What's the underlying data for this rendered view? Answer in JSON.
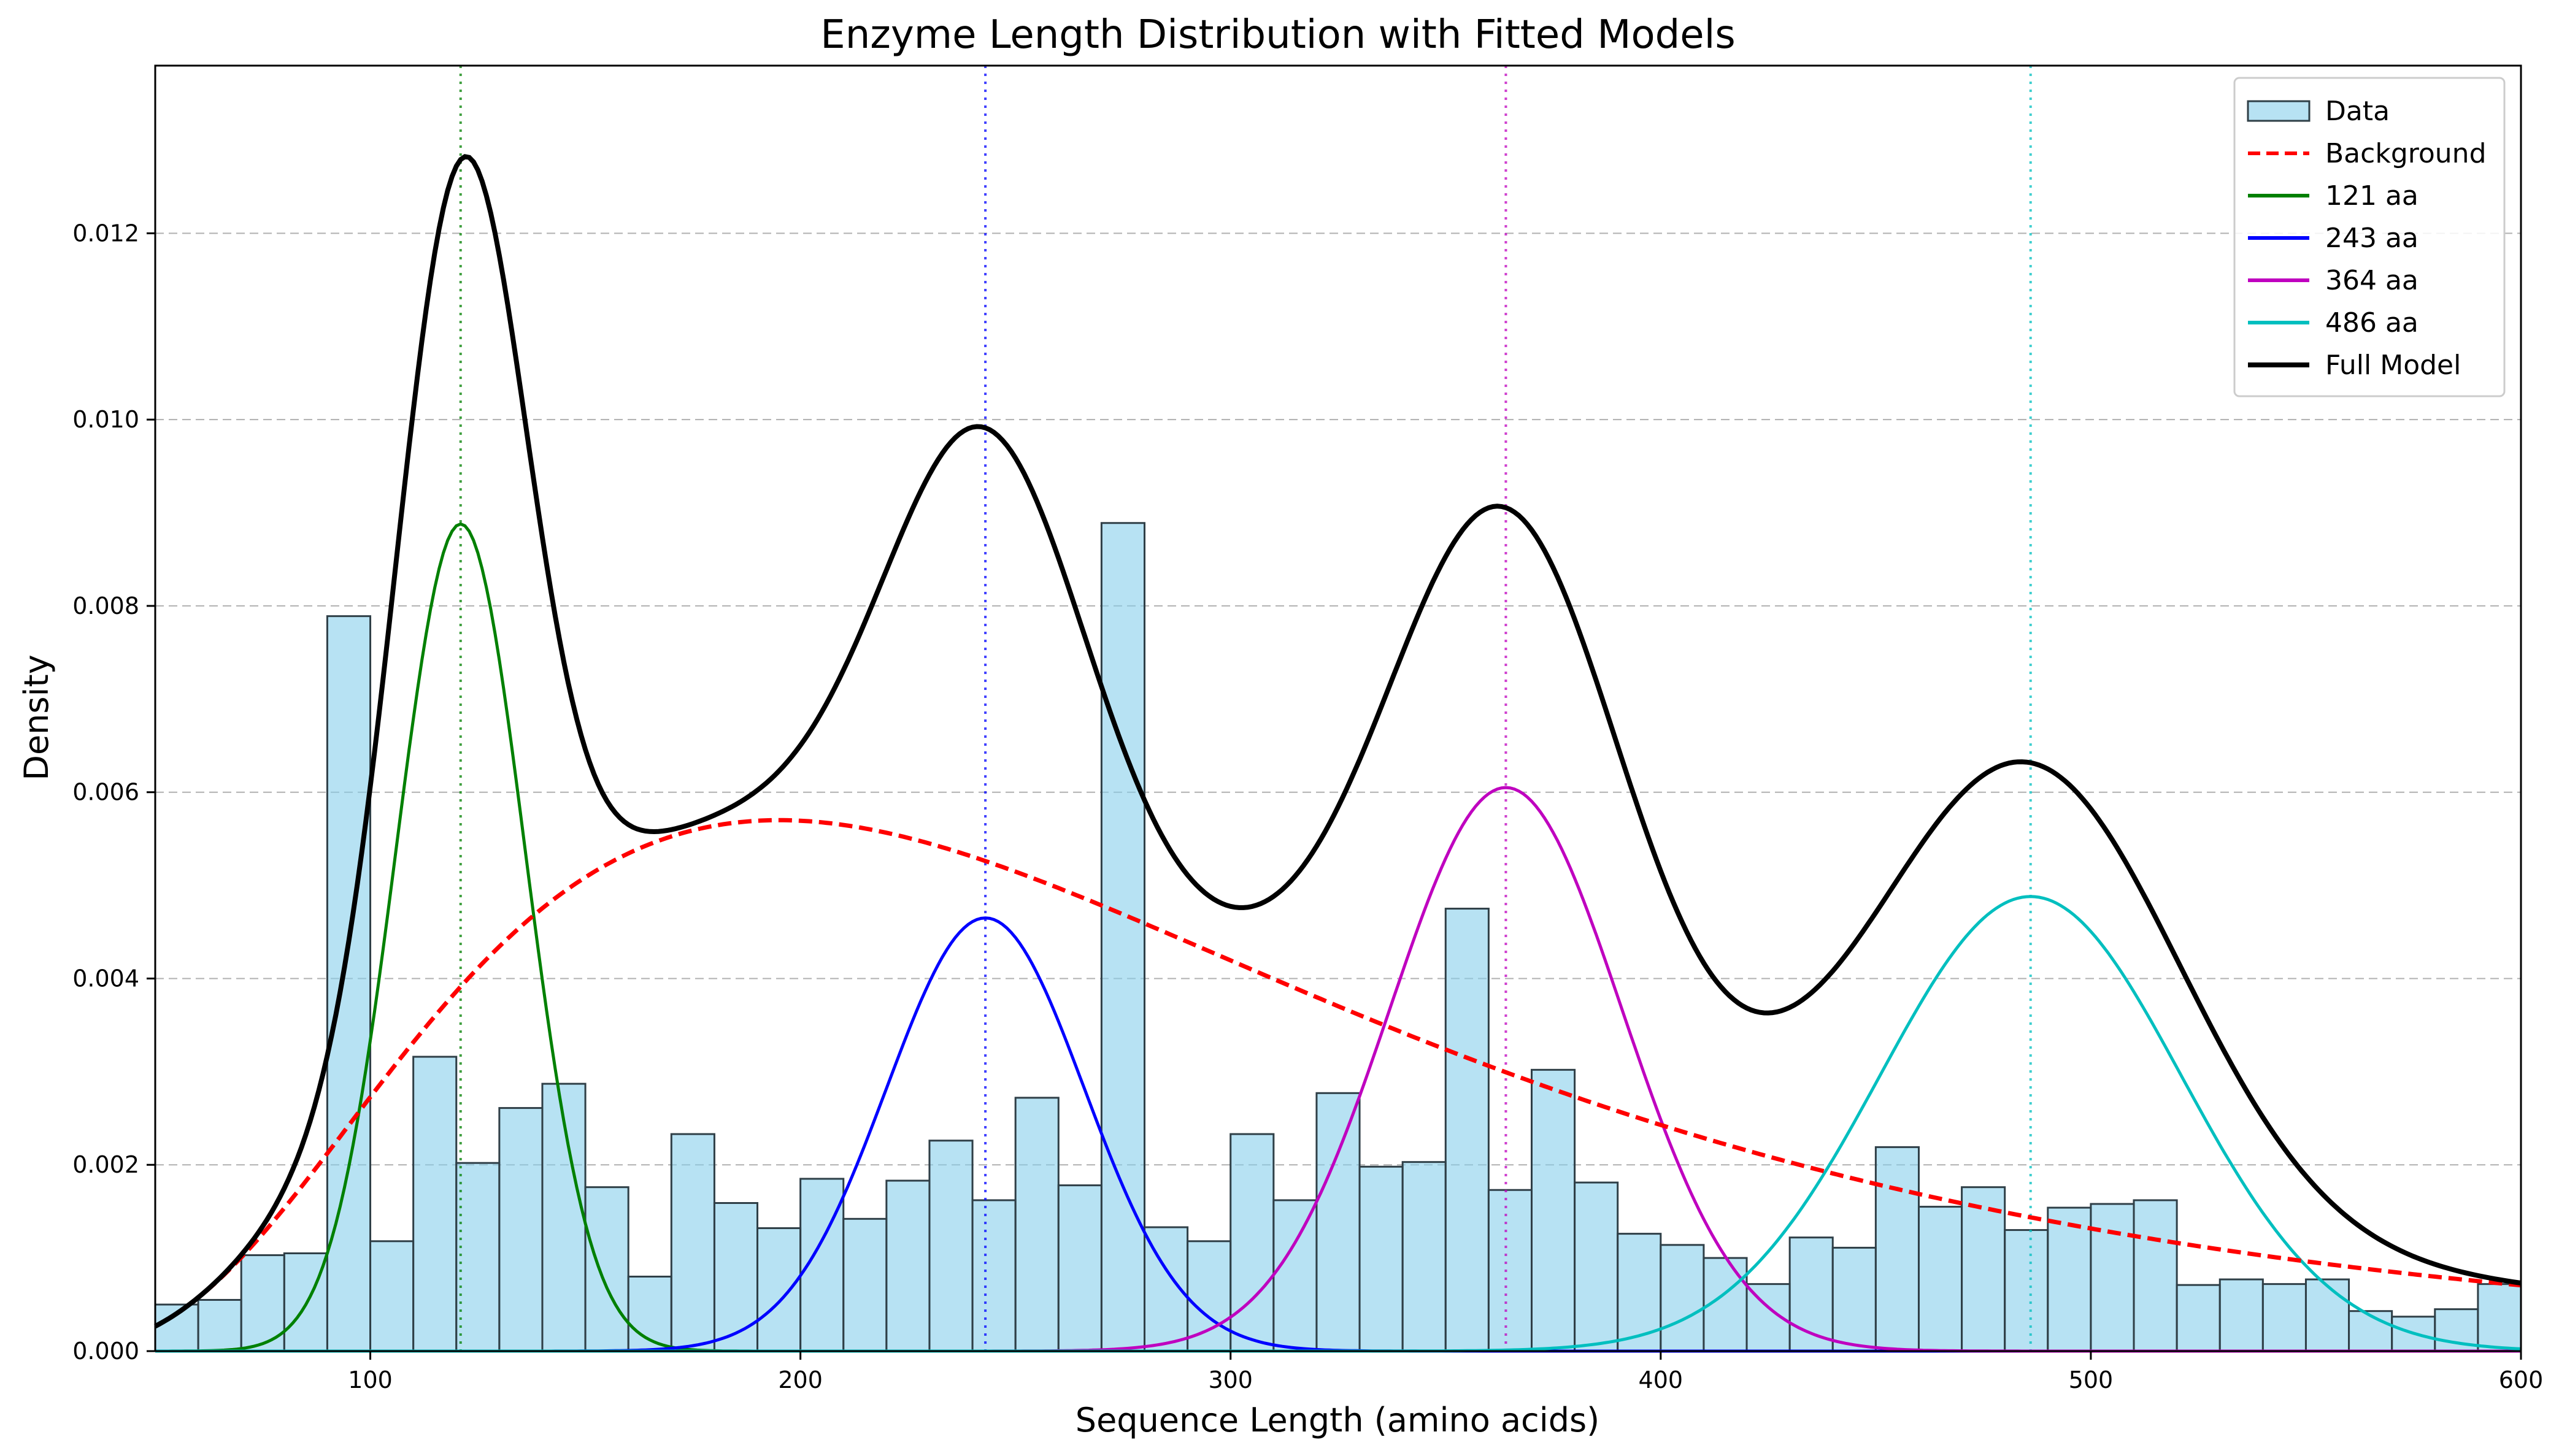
{
  "chart_data": {
    "type": "bar",
    "title": "Enzyme Length Distribution with Fitted Models",
    "xlabel": "Sequence Length (amino acids)",
    "ylabel": "Density",
    "xlim": [
      50,
      600
    ],
    "ylim": [
      0,
      0.0138
    ],
    "x_ticks": [
      100,
      200,
      300,
      400,
      500,
      600
    ],
    "x_tick_labels": [
      "100",
      "200",
      "300",
      "400",
      "500",
      "600"
    ],
    "y_ticks": [
      0,
      0.002,
      0.004,
      0.006,
      0.008,
      0.01,
      0.012
    ],
    "y_tick_labels": [
      "0.000",
      "0.002",
      "0.004",
      "0.006",
      "0.008",
      "0.010",
      "0.012"
    ],
    "grid": "horizontal dashed",
    "legend_position": "top-right",
    "histogram": {
      "name": "Data",
      "bin_start": 50,
      "bin_width": 10,
      "values": [
        0.0005,
        0.00055,
        0.00103,
        0.00105,
        0.00789,
        0.00118,
        0.00316,
        0.00202,
        0.00261,
        0.00287,
        0.00176,
        0.0008,
        0.00233,
        0.00159,
        0.00132,
        0.00185,
        0.00142,
        0.00183,
        0.00226,
        0.00162,
        0.00272,
        0.00178,
        0.00889,
        0.00133,
        0.00118,
        0.00233,
        0.00162,
        0.00277,
        0.00198,
        0.00203,
        0.00475,
        0.00173,
        0.00302,
        0.00181,
        0.00126,
        0.00114,
        0.001,
        0.00072,
        0.00122,
        0.00111,
        0.00219,
        0.00155,
        0.00176,
        0.0013,
        0.00154,
        0.00158,
        0.00162,
        0.00071,
        0.00077,
        0.00072,
        0.00077,
        0.00043,
        0.00037,
        0.00045,
        0.00072
      ],
      "fill": "#87ceeb",
      "edge": "#2f3f47"
    },
    "series": [
      {
        "name": "Background",
        "kind": "lognormal",
        "scale": 0.0057,
        "mode": 195,
        "sigma_log": 0.55,
        "color": "#ff0000",
        "dash": "dashed"
      },
      {
        "name": "121 aa",
        "kind": "gaussian",
        "amp": 0.00888,
        "mu": 121,
        "sd": 15,
        "color": "#008000"
      },
      {
        "name": "243 aa",
        "kind": "gaussian",
        "amp": 0.00465,
        "mu": 243,
        "sd": 23,
        "color": "#0000ff"
      },
      {
        "name": "364 aa",
        "kind": "gaussian",
        "amp": 0.00605,
        "mu": 364,
        "sd": 27,
        "color": "#bf00bf"
      },
      {
        "name": "486 aa",
        "kind": "gaussian",
        "amp": 0.00488,
        "mu": 486,
        "sd": 35,
        "color": "#00bfbf"
      },
      {
        "name": "Full Model",
        "kind": "sum",
        "color": "#000000"
      }
    ],
    "peak_markers": [
      {
        "x": 121,
        "color": "#008000"
      },
      {
        "x": 243,
        "color": "#0000ff"
      },
      {
        "x": 364,
        "color": "#bf00bf"
      },
      {
        "x": 486,
        "color": "#00bfbf"
      }
    ],
    "legend": [
      {
        "label": "Data",
        "kind": "patch",
        "color": "#87ceeb"
      },
      {
        "label": "Background",
        "kind": "dashed",
        "color": "#ff0000"
      },
      {
        "label": "121 aa",
        "kind": "line",
        "color": "#008000"
      },
      {
        "label": "243 aa",
        "kind": "line",
        "color": "#0000ff"
      },
      {
        "label": "364 aa",
        "kind": "line",
        "color": "#bf00bf"
      },
      {
        "label": "486 aa",
        "kind": "line",
        "color": "#00bfbf"
      },
      {
        "label": "Full Model",
        "kind": "line",
        "color": "#000000"
      }
    ]
  }
}
